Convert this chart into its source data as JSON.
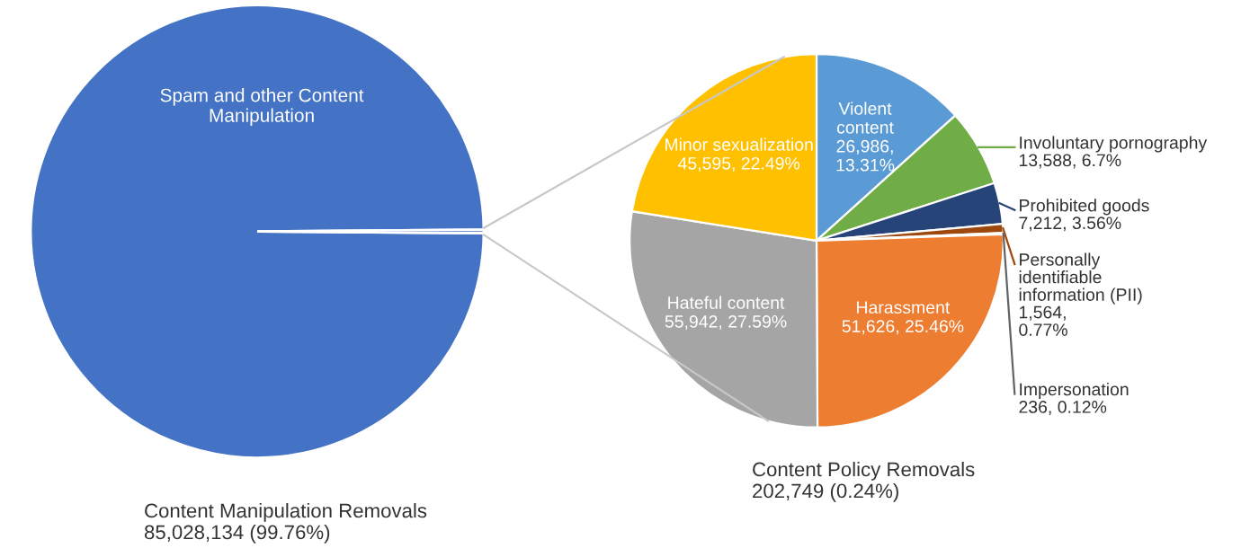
{
  "chart_data": [
    {
      "type": "pie",
      "title": "Content Manipulation Removals\n85,028,134 (99.76%)",
      "categories": [
        "Spam and other Content\nManipulation",
        null
      ],
      "values": [
        99.76,
        0.24
      ],
      "colors": [
        "#4472c4",
        "#4472c4"
      ],
      "legend": false
    },
    {
      "type": "pie",
      "title": "Content Policy Removals\n202,749 (0.24%)",
      "categories": [
        "Violent\ncontent",
        "Involuntary pornography",
        "Prohibited goods",
        "Personally\nidentifiable\ninformation (PII)",
        "Impersonation",
        "Harassment",
        "Hateful content",
        "Minor sexualization"
      ],
      "values": [
        26986,
        13588,
        7212,
        1564,
        236,
        51626,
        55942,
        45595
      ],
      "value_labels": [
        "26,986,\n13.31%",
        "13,588, 6.7%",
        "7,212, 3.56%",
        "1,564,\n0.77%",
        "236, 0.12%",
        "51,626, 25.46%",
        "55,942, 27.59%",
        "45,595, 22.49%"
      ],
      "colors": [
        "#5b9bd5",
        "#70ad47",
        "#264478",
        "#9e480e",
        "#636363",
        "#ed7d31",
        "#a5a5a5",
        "#ffc000"
      ],
      "legend": false
    }
  ]
}
